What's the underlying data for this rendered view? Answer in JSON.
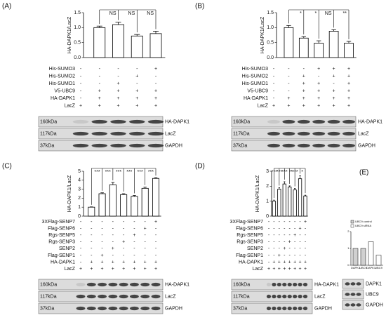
{
  "chart_data": [
    {
      "type": "bar",
      "ylabel": "HA-DAPK1/LacZ",
      "color": "#ffffff",
      "values": [
        1.0,
        1.1,
        0.72,
        0.8
      ],
      "errors": [
        0.05,
        0.08,
        0.05,
        0.08
      ],
      "ylim": [
        0,
        1.5
      ],
      "yticks": [
        {
          "value": 0,
          "label": "0.0"
        },
        0.5,
        {
          "value": 1,
          "label": "1.0"
        },
        1.5
      ],
      "annotations": [
        "NS",
        "NS",
        "NS"
      ]
    },
    {
      "type": "bar",
      "ylabel": "HA-DAPK1/LacZ",
      "color": "#ffffff",
      "values": [
        1.0,
        0.65,
        0.48,
        0.88,
        0.48
      ],
      "errors": [
        0.07,
        0.05,
        0.08,
        0.05,
        0.06
      ],
      "ylim": [
        0,
        1.5
      ],
      "yticks": [
        {
          "value": 0,
          "label": "0.0"
        },
        0.5,
        {
          "value": 1,
          "label": "1.0"
        },
        1.5
      ],
      "annotations": [
        "*",
        "*",
        "NS",
        "**"
      ]
    },
    {
      "type": "bar",
      "ylabel": "HA-DAPK1/LacZ",
      "color": "#ffffff",
      "values": [
        1.0,
        2.5,
        3.5,
        2.4,
        2.2,
        3.1,
        4.2
      ],
      "errors": [
        0.03,
        0.1,
        0.25,
        0.1,
        0.1,
        0.12,
        0.08
      ],
      "ylim": [
        0,
        5
      ],
      "yticks": [
        0,
        1,
        2,
        3,
        4,
        5
      ],
      "annotations": [
        "***",
        "***",
        "***",
        "***",
        "***",
        "***"
      ]
    },
    {
      "type": "bar",
      "ylabel": "HA-DAPK1/LacZ",
      "color": "#ffffff",
      "values": [
        1.0,
        1.8,
        2.15,
        1.95,
        1.75,
        2.5,
        1.35
      ],
      "errors": [
        0.07,
        0.1,
        0.15,
        0.07,
        0.1,
        0.2,
        0.05
      ],
      "ylim": [
        0,
        3
      ],
      "yticks": [
        0,
        1,
        2,
        3
      ],
      "annotations": [
        "***",
        "***",
        "***",
        "**",
        "***",
        "*"
      ]
    },
    {
      "type": "grouped",
      "categories": [
        "DAPK1",
        "UBC9",
        "DAPK1",
        "UBC9"
      ],
      "series": [
        {
          "name": "UBC9 control",
          "color": "#d0d0d0",
          "values": [
            1.0,
            1.0,
            null,
            null
          ]
        },
        {
          "name": "UBC9 siRNA",
          "color": "#ffffff",
          "values": [
            null,
            null,
            1.4,
            0.6
          ]
        }
      ],
      "ylim": [
        0,
        2
      ],
      "yticks": [
        0,
        1,
        2
      ]
    }
  ],
  "panels": [
    {
      "label": "(A)",
      "conditions": [
        {
          "name": "His-SUMO3",
          "signs": [
            "-",
            "-",
            "-",
            "-",
            "+"
          ]
        },
        {
          "name": "His-SUMO2",
          "signs": [
            "-",
            "-",
            "-",
            "+",
            "-"
          ]
        },
        {
          "name": "His-SUMO1",
          "signs": [
            "-",
            "-",
            "+",
            "-",
            "-"
          ]
        },
        {
          "name": "V5-UBC9",
          "signs": [
            "-",
            "+",
            "+",
            "+",
            "+"
          ]
        },
        {
          "name": "HA-DAPK1",
          "signs": [
            "-",
            "+",
            "+",
            "+",
            "+"
          ]
        },
        {
          "name": "LacZ",
          "signs": [
            "+",
            "+",
            "+",
            "+",
            "+"
          ]
        }
      ],
      "blots": [
        {
          "size": "160kDa",
          "name": "HA-DAPK1"
        },
        {
          "size": "117kDa",
          "name": "LacZ"
        },
        {
          "size": "37kDa",
          "name": "GAPDH"
        }
      ]
    },
    {
      "label": "(B)",
      "conditions": [
        {
          "name": "His-SUMO3",
          "signs": [
            "-",
            "-",
            "-",
            "+",
            "+",
            "+"
          ]
        },
        {
          "name": "His-SUMO2",
          "signs": [
            "-",
            "-",
            "+",
            "-",
            "+",
            "+"
          ]
        },
        {
          "name": "His-SUMO1",
          "signs": [
            "-",
            "-",
            "+",
            "+",
            "-",
            "+"
          ]
        },
        {
          "name": "V5-UBC9",
          "signs": [
            "-",
            "-",
            "+",
            "+",
            "+",
            "+"
          ]
        },
        {
          "name": "HA-DAPK1",
          "signs": [
            "-",
            "+",
            "+",
            "+",
            "+",
            "+"
          ]
        },
        {
          "name": "LacZ",
          "signs": [
            "+",
            "+",
            "+",
            "+",
            "+",
            "+"
          ]
        }
      ],
      "blots": [
        {
          "size": "160kDa",
          "name": "HA-DAPK1"
        },
        {
          "size": "117kDa",
          "name": "LacZ"
        },
        {
          "size": "37kDa",
          "name": "GAPDH"
        }
      ]
    },
    {
      "label": "(C)",
      "conditions": [
        {
          "name": "3XFlag-SENP7",
          "signs": [
            "-",
            "-",
            "-",
            "-",
            "-",
            "-",
            "-",
            "+"
          ]
        },
        {
          "name": "Flag-SENP6",
          "signs": [
            "-",
            "-",
            "-",
            "-",
            "-",
            "-",
            "+",
            "-"
          ]
        },
        {
          "name": "Rgs-SENP5",
          "signs": [
            "-",
            "-",
            "-",
            "-",
            "-",
            "+",
            "-",
            "-"
          ]
        },
        {
          "name": "Rgs-SENP3",
          "signs": [
            "-",
            "-",
            "-",
            "-",
            "+",
            "-",
            "-",
            "-"
          ]
        },
        {
          "name": "SENP2",
          "signs": [
            "-",
            "-",
            "-",
            "+",
            "-",
            "-",
            "-",
            "-"
          ]
        },
        {
          "name": "Flag-SENP1",
          "signs": [
            "-",
            "-",
            "+",
            "-",
            "-",
            "-",
            "-",
            "-"
          ]
        },
        {
          "name": "HA-DAPK1",
          "signs": [
            "-",
            "+",
            "+",
            "+",
            "+",
            "+",
            "+",
            "+"
          ]
        },
        {
          "name": "LacZ",
          "signs": [
            "+",
            "+",
            "+",
            "+",
            "+",
            "+",
            "+",
            "+"
          ]
        }
      ],
      "blots": [
        {
          "size": "160kDa",
          "name": "HA-DAPK1"
        },
        {
          "size": "117kDa",
          "name": "LacZ"
        },
        {
          "size": "37kDa",
          "name": "GAPDH"
        }
      ]
    },
    {
      "label": "(D)",
      "conditions": [
        {
          "name": "3XFlag-SENP7",
          "signs": [
            "-",
            "-",
            "-",
            "-",
            "-",
            "-",
            "-",
            "+"
          ]
        },
        {
          "name": "Flag-SENP6",
          "signs": [
            "-",
            "-",
            "-",
            "-",
            "-",
            "-",
            "+",
            "-"
          ]
        },
        {
          "name": "Rgs-SENP5",
          "signs": [
            "-",
            "-",
            "-",
            "-",
            "-",
            "+",
            "-",
            "-"
          ]
        },
        {
          "name": "Rgs-SENP3",
          "signs": [
            "-",
            "-",
            "-",
            "-",
            "+",
            "-",
            "-",
            "-"
          ]
        },
        {
          "name": "SENP2",
          "signs": [
            "-",
            "-",
            "-",
            "+",
            "-",
            "-",
            "-",
            "-"
          ]
        },
        {
          "name": "Flag-SENP1",
          "signs": [
            "-",
            "-",
            "+",
            "-",
            "-",
            "-",
            "-",
            "-"
          ]
        },
        {
          "name": "HA-DAPK1",
          "signs": [
            "-",
            "+",
            "+",
            "+",
            "+",
            "+",
            "+",
            "+"
          ]
        },
        {
          "name": "LacZ",
          "signs": [
            "+",
            "+",
            "+",
            "+",
            "+",
            "+",
            "+",
            "+"
          ]
        }
      ],
      "blots": [
        {
          "size": "160kDa",
          "name": "HA-DAPK1"
        },
        {
          "size": "117kDa",
          "name": "LacZ"
        },
        {
          "size": "37kDa",
          "name": "GAPDH"
        }
      ]
    },
    {
      "label": "(E)",
      "blots": [
        {
          "name": "DAPK1"
        },
        {
          "name": "UBC9"
        },
        {
          "name": "GAPDH"
        }
      ]
    }
  ]
}
